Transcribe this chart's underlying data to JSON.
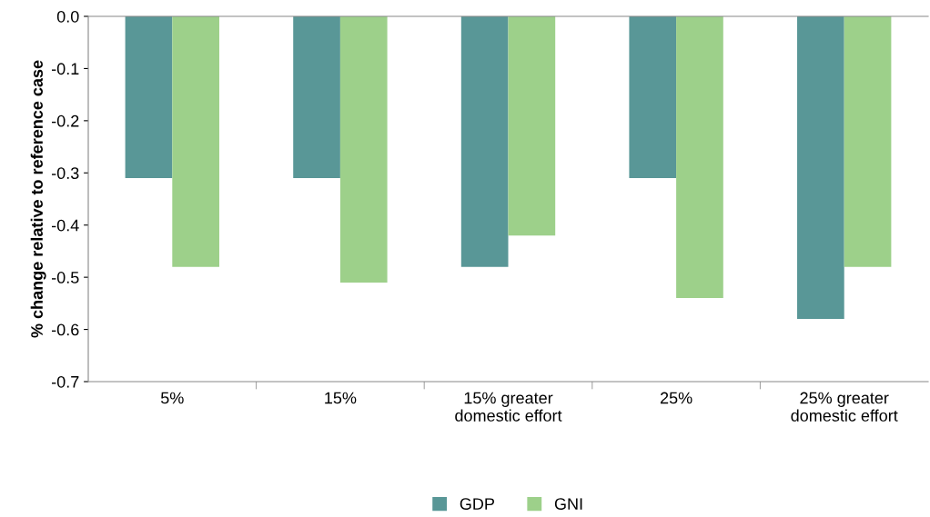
{
  "chart_data": {
    "type": "bar",
    "ylabel": "% change relative to reference case",
    "categories": [
      "5%",
      "15%",
      "15% greater\ndomestic effort",
      "25%",
      "25% greater\ndomestic effort"
    ],
    "series": [
      {
        "name": "GDP",
        "color": "#599797",
        "values": [
          -0.31,
          -0.31,
          -0.48,
          -0.31,
          -0.58
        ]
      },
      {
        "name": "GNI",
        "color": "#9dd08a",
        "values": [
          -0.48,
          -0.51,
          -0.42,
          -0.54,
          -0.48
        ]
      }
    ],
    "ylim": [
      -0.7,
      0.0
    ],
    "yticks": [
      {
        "value": -0.7,
        "label": "-0.7"
      },
      {
        "value": -0.6,
        "label": "-0.6"
      },
      {
        "value": -0.5,
        "label": "-0.5"
      },
      {
        "value": -0.4,
        "label": "-0.4"
      },
      {
        "value": -0.3,
        "label": "-0.3"
      },
      {
        "value": -0.2,
        "label": "-0.2"
      },
      {
        "value": -0.1,
        "label": "-0.1"
      },
      {
        "value": 0.0,
        "label": "0.0"
      }
    ],
    "grid": false,
    "legend": "bottom"
  }
}
